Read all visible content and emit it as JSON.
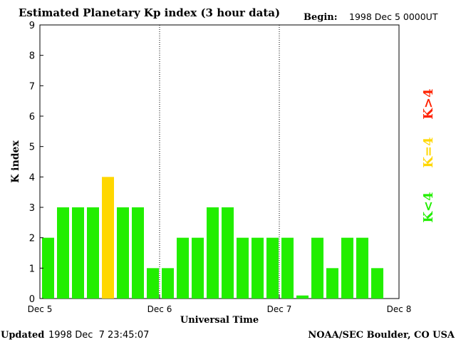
{
  "chart_data": {
    "type": "bar",
    "title": "Estimated Planetary Kp index (3 hour data)",
    "begin_label": "Begin:",
    "begin_value": "1998 Dec 5 0000UT",
    "xlabel": "Universal Time",
    "ylabel": "K index",
    "ylim": [
      0,
      9
    ],
    "yticks": [
      "0",
      "1",
      "2",
      "3",
      "4",
      "5",
      "6",
      "7",
      "8",
      "9"
    ],
    "xticks": [
      "Dec 5",
      "Dec 6",
      "Dec 7",
      "Dec 8"
    ],
    "bin_hours": 3,
    "values": [
      2,
      3,
      3,
      3,
      4,
      3,
      3,
      1,
      1,
      2,
      2,
      3,
      3,
      2,
      2,
      2,
      2,
      0.1,
      2,
      1,
      2,
      2,
      1
    ],
    "colors": {
      "low": "#22ee00",
      "equal": "#ffd700",
      "high": "#ff2200"
    },
    "legend": [
      {
        "label": "K>4",
        "color": "#ff2200"
      },
      {
        "label": "K=4",
        "color": "#ffd700"
      },
      {
        "label": "K<4",
        "color": "#22ee00"
      }
    ],
    "legend_position": "right"
  },
  "footer": {
    "updated_label": "Updated",
    "updated_value": "1998 Dec  7 23:45:07",
    "source": "NOAA/SEC Boulder, CO USA"
  }
}
